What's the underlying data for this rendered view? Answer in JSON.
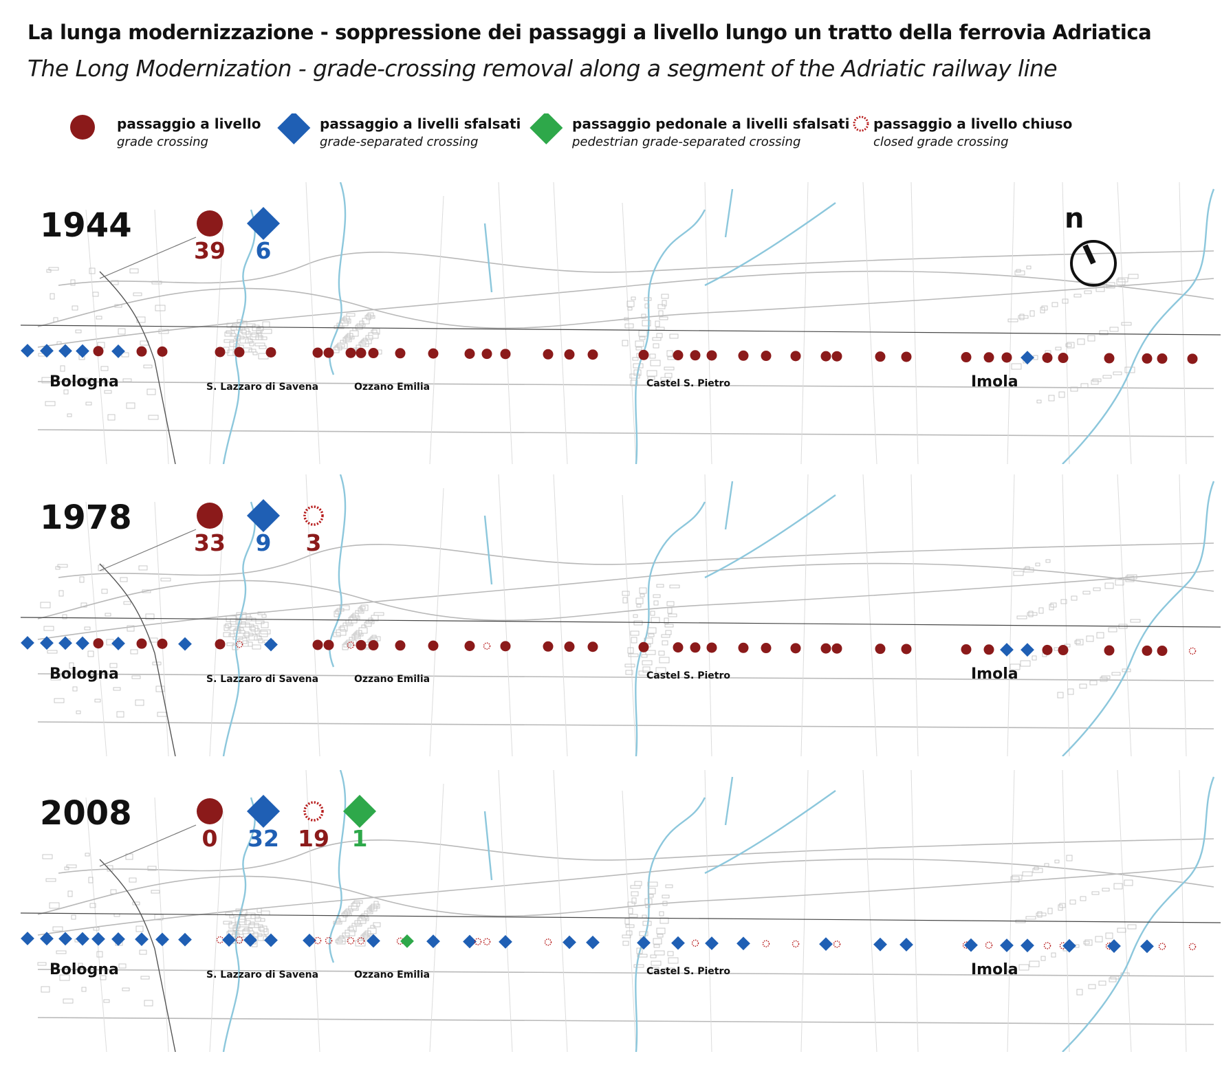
{
  "title": "La lunga modernizzazione - soppressione dei passaggi a livello lungo un tratto della ferrovia Adriatica",
  "subtitle": "The Long Modernization - grade-crossing removal along a segment of the Adriatic railway line",
  "colors": {
    "grade": "#8b1a1a",
    "separated": "#1f5fb4",
    "pedestrian": "#2ea84a",
    "closed": "#b71c1c",
    "water": "#8cc7dc",
    "road": "#c9c9c9",
    "rail": "#333333"
  },
  "legend": [
    {
      "symbol": "grade",
      "it": "passaggio a livello",
      "en": "grade crossing"
    },
    {
      "symbol": "separated",
      "it": "passaggio a livelli sfalsati",
      "en": "grade-separated crossing"
    },
    {
      "symbol": "pedestrian",
      "it": "passaggio pedonale a livelli sfalsati",
      "en": "pedestrian grade-separated crossing"
    },
    {
      "symbol": "closed",
      "it": "passaggio a livello chiuso",
      "en": "closed grade crossing"
    }
  ],
  "towns": {
    "bologna": "Bologna",
    "slazzaro": "S. Lazzaro di Savena",
    "ozzano": "Ozzano Emilia",
    "castel": "Castel S. Pietro",
    "imola": "Imola"
  },
  "north_label": "n",
  "panels": [
    {
      "year": "1944",
      "counts": [
        {
          "type": "grade",
          "value": "39"
        },
        {
          "type": "separated",
          "value": "6"
        }
      ]
    },
    {
      "year": "1978",
      "counts": [
        {
          "type": "grade",
          "value": "33"
        },
        {
          "type": "separated",
          "value": "9"
        },
        {
          "type": "closed",
          "value": "3"
        }
      ]
    },
    {
      "year": "2008",
      "counts": [
        {
          "type": "grade",
          "value": "0"
        },
        {
          "type": "separated",
          "value": "32"
        },
        {
          "type": "closed",
          "value": "19"
        },
        {
          "type": "pedestrian",
          "value": "1"
        }
      ]
    }
  ]
}
